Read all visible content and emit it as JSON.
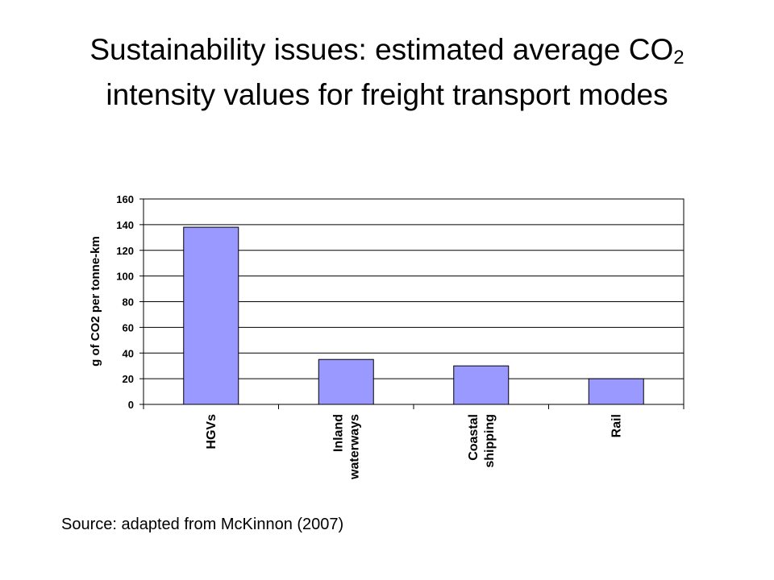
{
  "slide": {
    "title_line1_prefix": "Sustainability issues: estimated average CO",
    "title_subscript": "2",
    "title_line2": "intensity values for freight transport modes",
    "source": "Source: adapted from McKinnon (2007)"
  },
  "colors": {
    "bar_fill": "#9999ff",
    "bar_stroke": "#000000",
    "grid": "#000000",
    "background": "#ffffff"
  },
  "chart_data": {
    "type": "bar",
    "title": "",
    "xlabel": "",
    "ylabel": "g of CO2 per tonne-km",
    "ylim": [
      0,
      160
    ],
    "yticks": [
      0,
      20,
      40,
      60,
      80,
      100,
      120,
      140,
      160
    ],
    "grid": true,
    "legend": "none",
    "categories": [
      [
        "HGVs"
      ],
      [
        "Inland",
        "waterways"
      ],
      [
        "Coastal",
        "shipping"
      ],
      [
        "Rail"
      ]
    ],
    "values": [
      138,
      35,
      30,
      20
    ]
  }
}
